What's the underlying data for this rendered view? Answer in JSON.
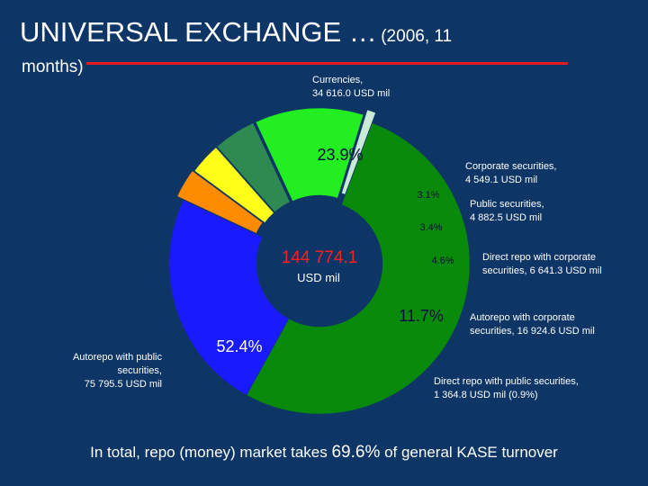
{
  "title": {
    "main": "UNIVERSAL EXCHANGE …",
    "sub_part1": "(2006, 11",
    "sub_part2": "months)"
  },
  "chart_data": {
    "type": "pie",
    "center_label": {
      "value": "144 774.1",
      "unit": "USD mil"
    },
    "slices": [
      {
        "name": "Currencies",
        "value": 34616.0,
        "percent": 23.9,
        "pct_label": "23.9%",
        "color": "#1a1aff",
        "label_lines": [
          "Currencies,",
          "34 616.0 USD mil"
        ]
      },
      {
        "name": "Corporate securities",
        "value": 4549.1,
        "percent": 3.1,
        "pct_label": "3.1%",
        "color": "#ff8c00",
        "label_lines": [
          "Corporate securities,",
          "4 549.1 USD mil"
        ]
      },
      {
        "name": "Public securities",
        "value": 4882.5,
        "percent": 3.4,
        "pct_label": "3.4%",
        "color": "#ffff19",
        "label_lines": [
          "Public securities,",
          "4 882.5 USD mil"
        ]
      },
      {
        "name": "Direct repo with corporate securities",
        "value": 6641.3,
        "percent": 4.6,
        "pct_label": "4.6%",
        "color": "#2f8a52",
        "label_lines": [
          "Direct repo with corporate",
          "securities, 6 641.3 USD mil"
        ]
      },
      {
        "name": "Autorepo with corporate securities",
        "value": 16924.6,
        "percent": 11.7,
        "pct_label": "11.7%",
        "color": "#22ee22",
        "label_lines": [
          "Autorepo with corporate",
          "securities, 16 924.6 USD mil"
        ]
      },
      {
        "name": "Direct repo with public securities",
        "value": 1364.8,
        "percent": 0.9,
        "pct_label": "",
        "color": "#c9ead6",
        "label_lines": [
          "Direct repo with public securities,",
          "1 364.8 USD mil (0.9%)"
        ]
      },
      {
        "name": "Autorepo with public securities",
        "value": 75795.5,
        "percent": 52.4,
        "pct_label": "52.4%",
        "color": "#0a8a0a",
        "label_lines": [
          "Autorepo with public",
          "securities,",
          "75 795.5 USD mil"
        ]
      }
    ]
  },
  "footer": {
    "text_before": "In total, repo (money) market takes ",
    "highlight": "69.6%",
    "text_after": " of general KASE turnover"
  }
}
